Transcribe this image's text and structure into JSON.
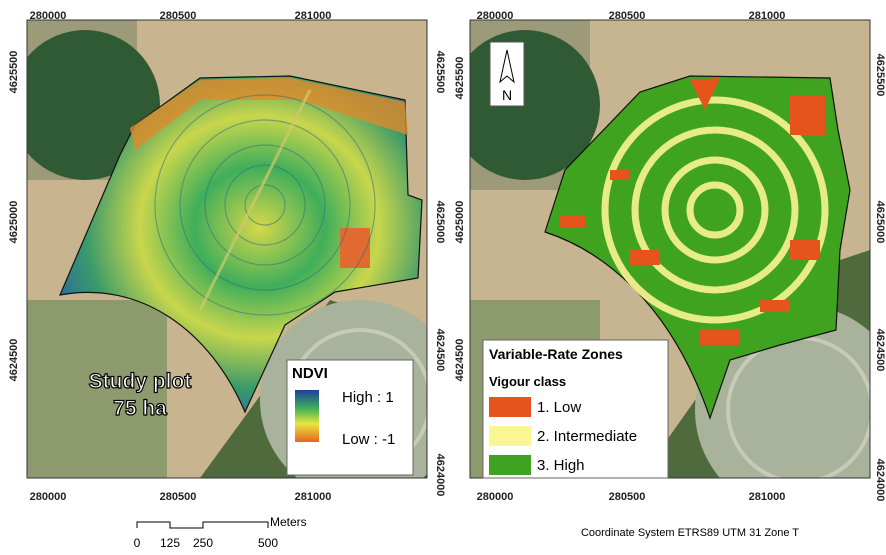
{
  "left_map": {
    "x_labels_top": [
      280000,
      280500,
      281000
    ],
    "x_labels_bottom": [
      280000,
      280500,
      281000
    ],
    "y_labels_left": [
      4625500,
      4625000,
      4624500
    ],
    "y_labels_right": [
      4625500,
      4625000,
      4624500,
      4624000
    ],
    "plot_label": {
      "line1": "Study plot",
      "line2": "75 ha"
    },
    "legend": {
      "title": "NDVI",
      "high": "High : 1",
      "low": "Low : -1"
    }
  },
  "right_map": {
    "x_labels_top": [
      280000,
      280500,
      281000
    ],
    "x_labels_bottom": [
      280000,
      280500,
      281000
    ],
    "y_labels_left": [
      4625500,
      4625000,
      4624500
    ],
    "y_labels_right": [
      4625500,
      4625000,
      4624500,
      4624000
    ],
    "north": "N",
    "legend": {
      "title": "Variable-Rate Zones",
      "subtitle": "Vigour class",
      "items": [
        {
          "label": "1. Low",
          "color": "#e5541b"
        },
        {
          "label": "2. Intermediate",
          "color": "#fbf594"
        },
        {
          "label": "3. High",
          "color": "#3fa320"
        }
      ]
    }
  },
  "scale_bar": {
    "unit": "Meters",
    "labels": [
      0,
      125,
      250,
      500
    ]
  },
  "coordinate_system": "Coordinate System ETRS89 UTM 31 Zone T"
}
